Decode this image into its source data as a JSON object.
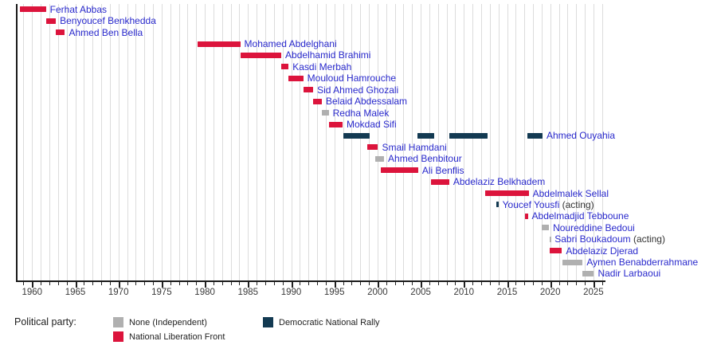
{
  "chart_data": {
    "type": "bar",
    "subtype": "gantt-timeline",
    "title": "",
    "xlabel": "",
    "ylabel": "",
    "x_axis": {
      "min": 1958.2,
      "max": 2026.2,
      "gridline_step_years": 1,
      "minor_tick_step_years": 1,
      "major_tick_step_years": 5,
      "major_tick_labels": [
        "1960",
        "1965",
        "1970",
        "1975",
        "1980",
        "1985",
        "1990",
        "1995",
        "2000",
        "2005",
        "2010",
        "2015",
        "2020",
        "2025"
      ],
      "grid": "on"
    },
    "parties": {
      "none": {
        "label": "None (Independent)",
        "color": "#b0b0b0"
      },
      "fln": {
        "label": "National Liberation Front",
        "color": "#dc143c"
      },
      "rnd": {
        "label": "Democratic National Rally",
        "color": "#133a52"
      }
    },
    "rows": [
      {
        "name": "Ferhat Abbas",
        "suffix": "",
        "party": "fln",
        "segments": [
          [
            1958.6,
            1961.6
          ]
        ]
      },
      {
        "name": "Benyoucef Benkhedda",
        "suffix": "",
        "party": "fln",
        "segments": [
          [
            1961.6,
            1962.75
          ]
        ]
      },
      {
        "name": "Ahmed Ben Bella",
        "suffix": "",
        "party": "fln",
        "segments": [
          [
            1962.75,
            1963.8
          ]
        ]
      },
      {
        "name": "Mohamed Abdelghani",
        "suffix": "",
        "party": "fln",
        "segments": [
          [
            1979.2,
            1984.1
          ]
        ]
      },
      {
        "name": "Abdelhamid Brahimi",
        "suffix": "",
        "party": "fln",
        "segments": [
          [
            1984.1,
            1988.85
          ]
        ]
      },
      {
        "name": "Kasdi Merbah",
        "suffix": "",
        "party": "fln",
        "segments": [
          [
            1988.85,
            1989.7
          ]
        ]
      },
      {
        "name": "Mouloud Hamrouche",
        "suffix": "",
        "party": "fln",
        "segments": [
          [
            1989.7,
            1991.4
          ]
        ]
      },
      {
        "name": "Sid Ahmed Ghozali",
        "suffix": "",
        "party": "fln",
        "segments": [
          [
            1991.4,
            1992.55
          ]
        ]
      },
      {
        "name": "Belaid Abdessalam",
        "suffix": "",
        "party": "fln",
        "segments": [
          [
            1992.55,
            1993.55
          ]
        ]
      },
      {
        "name": "Redha Malek",
        "suffix": "",
        "party": "none",
        "segments": [
          [
            1993.55,
            1994.35
          ]
        ]
      },
      {
        "name": "Mokdad Sifi",
        "suffix": "",
        "party": "fln",
        "segments": [
          [
            1994.35,
            1995.95
          ]
        ]
      },
      {
        "name": "Ahmed Ouyahia",
        "suffix": "",
        "party": "rnd",
        "segments": [
          [
            1996.0,
            1999.1
          ],
          [
            2004.6,
            2006.55
          ],
          [
            2008.3,
            2012.7
          ],
          [
            2017.35,
            2019.1
          ]
        ]
      },
      {
        "name": "Smail Hamdani",
        "suffix": "",
        "party": "fln",
        "segments": [
          [
            1998.8,
            2000.05
          ]
        ]
      },
      {
        "name": "Ahmed Benbitour",
        "suffix": "",
        "party": "none",
        "segments": [
          [
            1999.75,
            2000.75
          ]
        ]
      },
      {
        "name": "Ali Benflis",
        "suffix": "",
        "party": "fln",
        "segments": [
          [
            2000.4,
            2004.7
          ]
        ]
      },
      {
        "name": "Abdelaziz Belkhadem",
        "suffix": "",
        "party": "fln",
        "segments": [
          [
            2006.2,
            2008.3
          ]
        ]
      },
      {
        "name": "Abdelmalek Sellal",
        "suffix": "",
        "party": "fln",
        "segments": [
          [
            2012.5,
            2017.5
          ]
        ]
      },
      {
        "name": "Youcef Yousfi",
        "suffix": " (acting)",
        "party": "rnd",
        "segments": [
          [
            2013.75,
            2014.0
          ]
        ]
      },
      {
        "name": "Abdelmadjid Tebboune",
        "suffix": "",
        "party": "fln",
        "segments": [
          [
            2017.1,
            2017.4
          ]
        ]
      },
      {
        "name": "Noureddine Bedoui",
        "suffix": "",
        "party": "none",
        "segments": [
          [
            2019.0,
            2019.85
          ]
        ]
      },
      {
        "name": "Sabri Boukadoum",
        "suffix": " (acting)",
        "party": "none",
        "segments": [
          [
            2019.9,
            2020.05
          ]
        ]
      },
      {
        "name": "Abdelaziz Djerad",
        "suffix": "",
        "party": "fln",
        "segments": [
          [
            2019.95,
            2021.35
          ]
        ]
      },
      {
        "name": "Aymen Benabderrahmane",
        "suffix": "",
        "party": "none",
        "segments": [
          [
            2021.45,
            2023.75
          ]
        ]
      },
      {
        "name": "Nadir Larbaoui",
        "suffix": "",
        "party": "none",
        "segments": [
          [
            2023.75,
            2025.05
          ]
        ]
      }
    ],
    "legend": {
      "title": "Political party:",
      "position": "bottom",
      "entries": [
        "none",
        "fln",
        "rnd"
      ]
    }
  }
}
